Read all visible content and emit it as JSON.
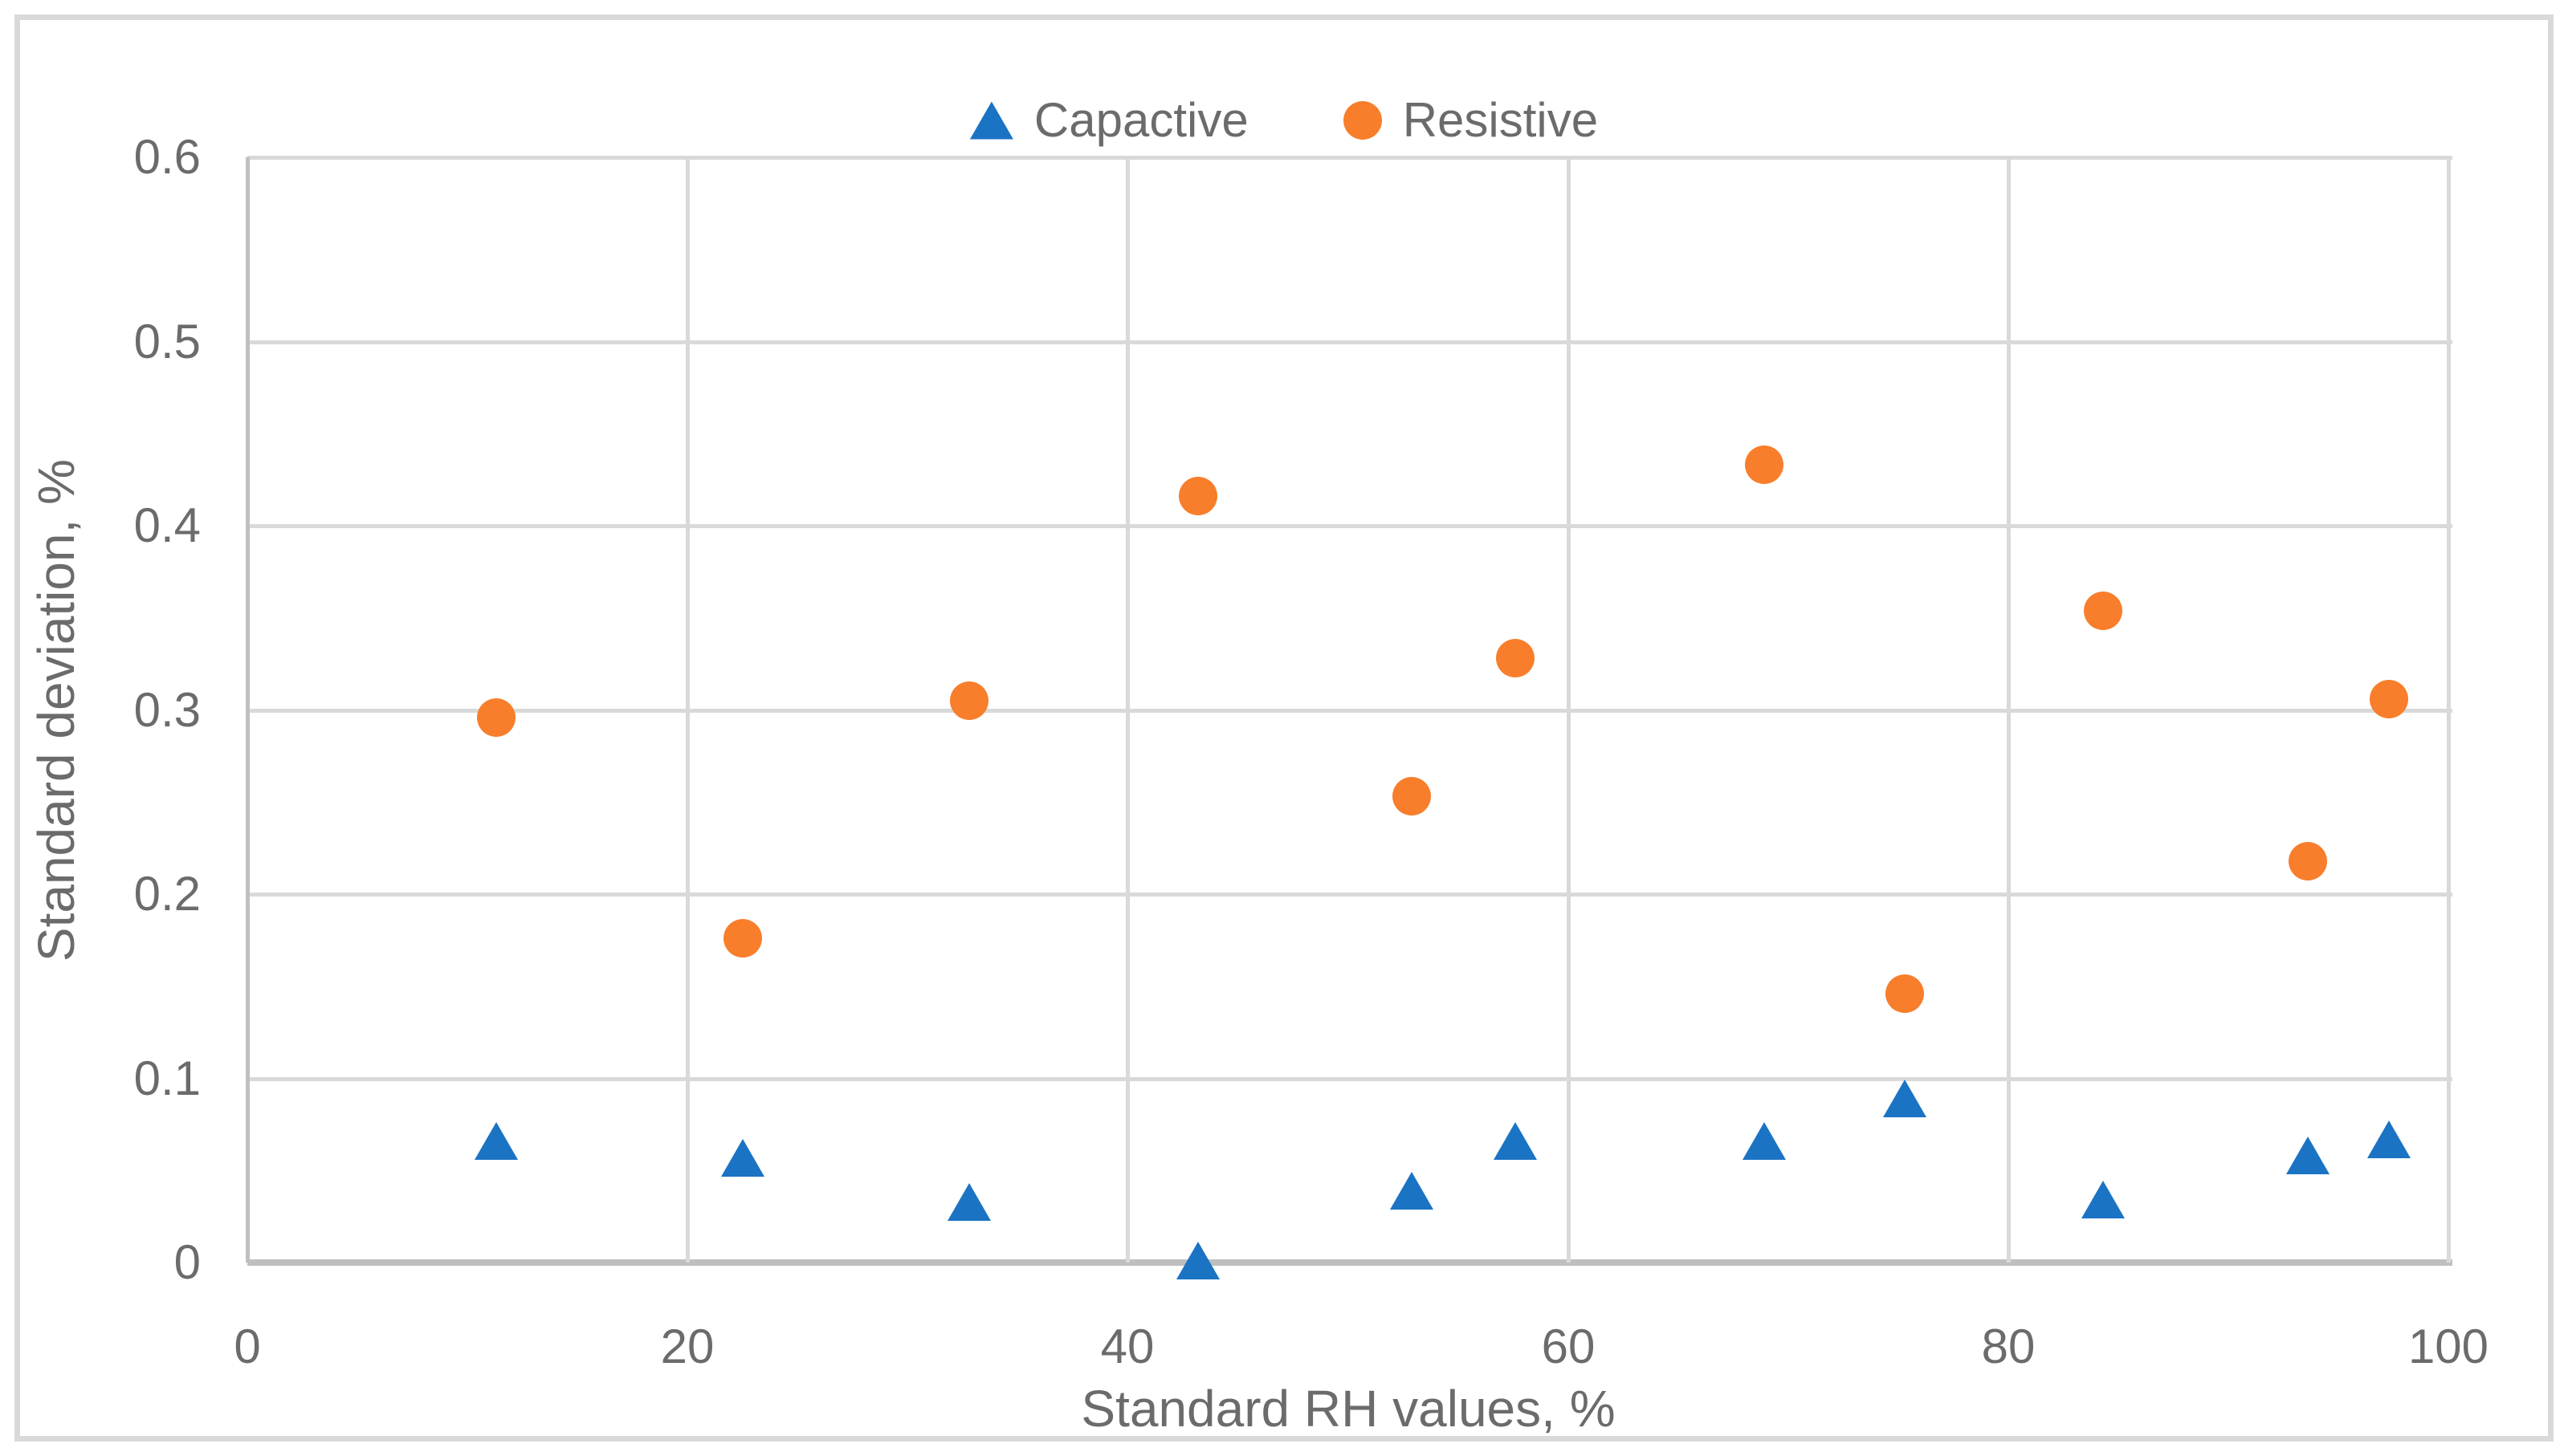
{
  "figure": {
    "background_color": "#FFFFFF",
    "border_color": "#D9D9D9",
    "gridline_color": "#D9D9D9",
    "axis_line_color": "#BFBFBF",
    "text_color": "#6B6B6B"
  },
  "legend": {
    "position": "top-center",
    "items": [
      {
        "label": "Capactive",
        "marker": "triangle-marker",
        "color": "#1B73C4"
      },
      {
        "label": "Resistive",
        "marker": "circle-marker",
        "color": "#F87E2B"
      }
    ]
  },
  "chart_data": {
    "type": "scatter",
    "title": "",
    "xlabel": "Standard RH values, %",
    "ylabel": "Standard deviation, %",
    "xlim": [
      0,
      100
    ],
    "ylim": [
      0,
      0.6
    ],
    "grid": true,
    "legend_position": "top-center",
    "x_ticks": [
      0,
      20,
      40,
      60,
      80,
      100
    ],
    "x_tick_labels": [
      "0",
      "20",
      "40",
      "60",
      "80",
      "100"
    ],
    "y_ticks": [
      0,
      0.1,
      0.2,
      0.3,
      0.4,
      0.5,
      0.6
    ],
    "y_tick_labels": [
      "0",
      "0.1",
      "0.2",
      "0.3",
      "0.4",
      "0.5",
      "0.6"
    ],
    "x": [
      11.3,
      22.5,
      32.8,
      43.2,
      52.9,
      57.6,
      68.9,
      75.3,
      84.3,
      93.6,
      97.3
    ],
    "series": [
      {
        "name": "Capactive",
        "marker": "triangle",
        "color": "#1B73C4",
        "values": [
          0.066,
          0.057,
          0.033,
          0.001,
          0.039,
          0.066,
          0.066,
          0.089,
          0.034,
          0.058,
          0.067
        ]
      },
      {
        "name": "Resistive",
        "marker": "circle",
        "color": "#F87E2B",
        "values": [
          0.296,
          0.176,
          0.305,
          0.416,
          0.253,
          0.328,
          0.433,
          0.146,
          0.354,
          0.218,
          0.306
        ]
      }
    ]
  }
}
